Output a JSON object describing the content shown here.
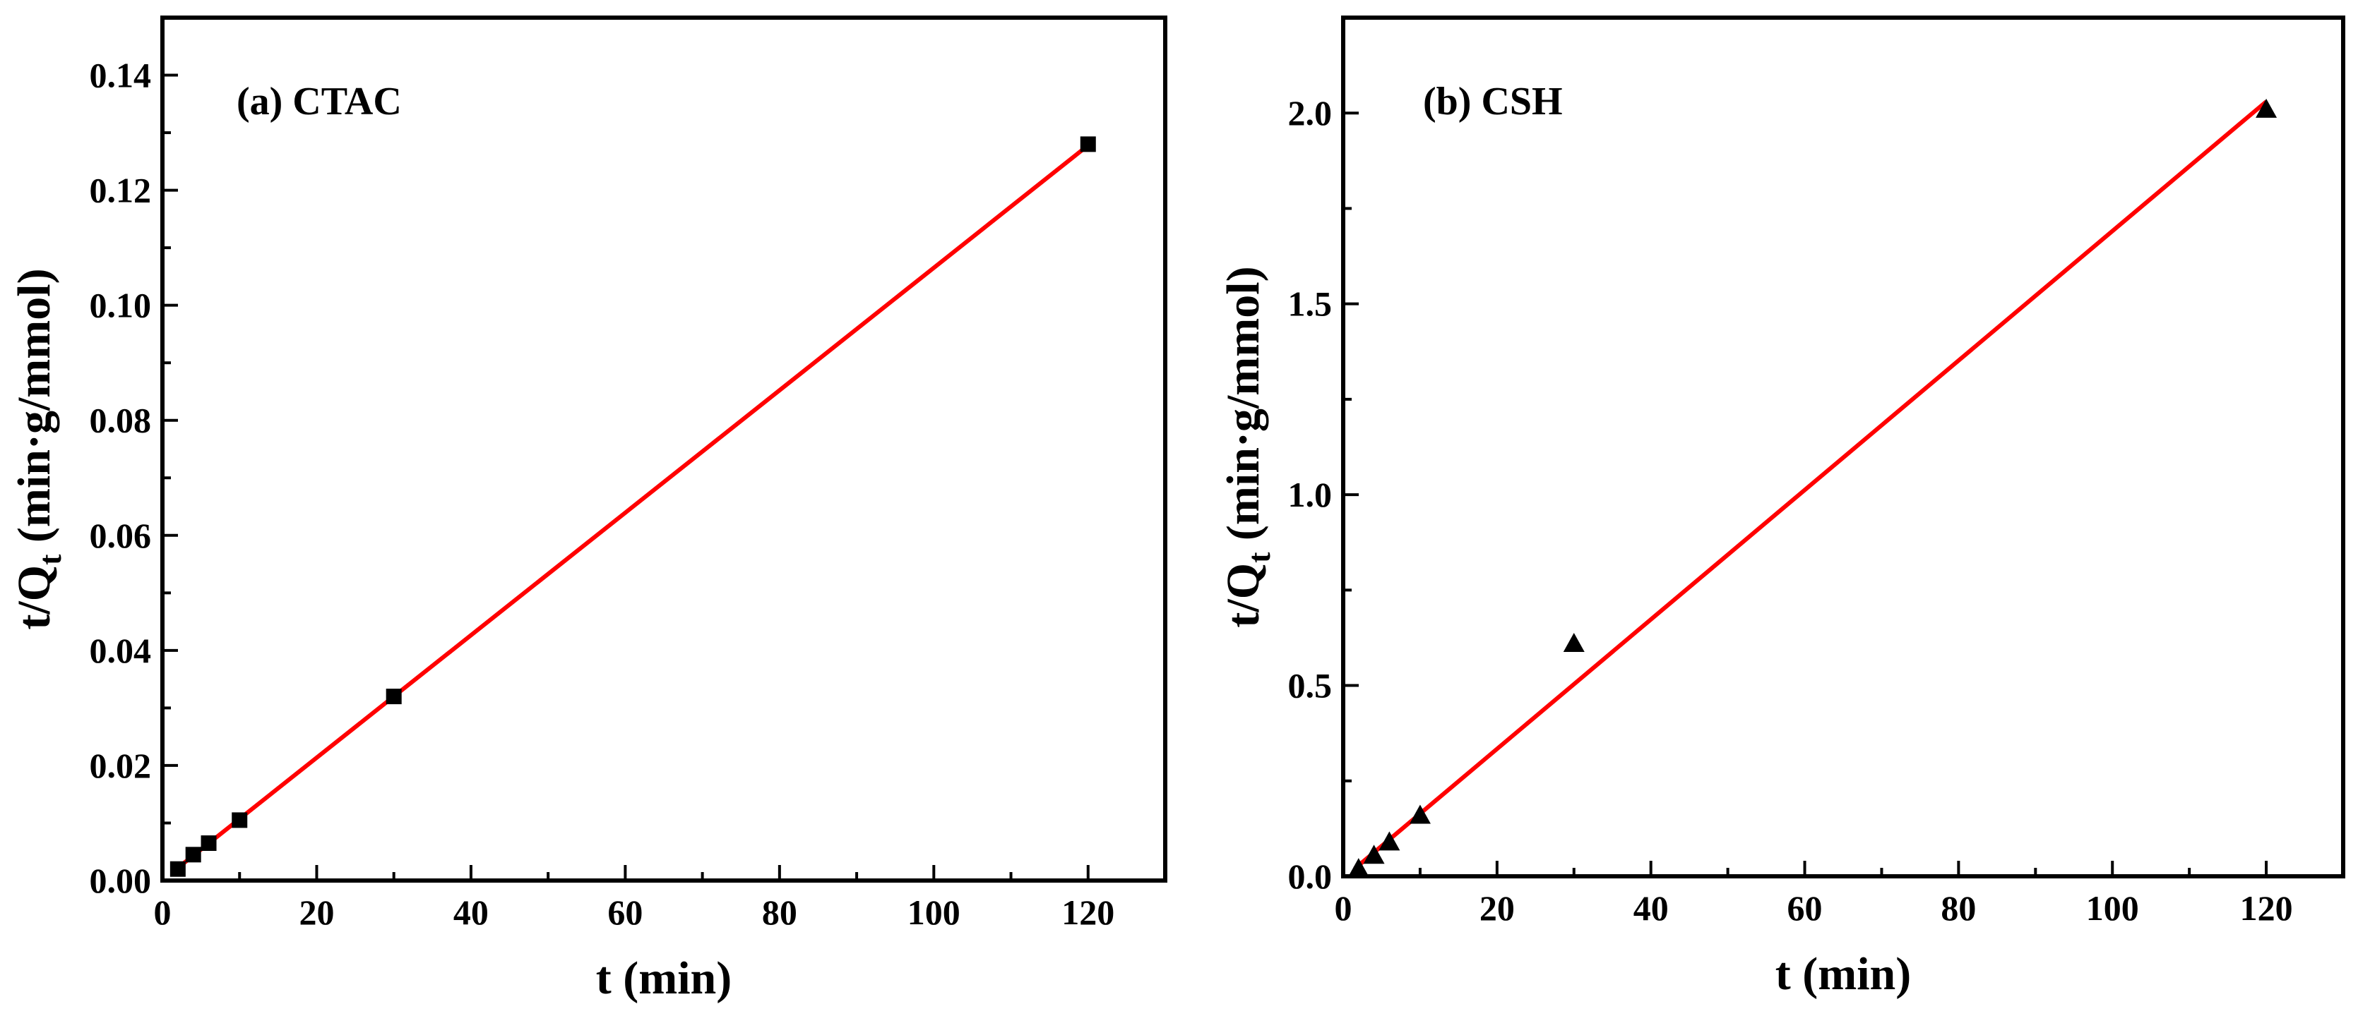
{
  "chart_data": [
    {
      "type": "scatter",
      "title": "(a) CTAC",
      "xlabel": "t (min)",
      "ylabel": {
        "main": "t/Q",
        "sub": "t",
        "unit": " (min·g/mmol)"
      },
      "xlim": [
        0,
        130
      ],
      "ylim": [
        0,
        0.15
      ],
      "xticks": [
        0,
        20,
        40,
        60,
        80,
        100,
        120
      ],
      "xtick_labels": [
        "0",
        "20",
        "40",
        "60",
        "80",
        "100",
        "120"
      ],
      "yticks": [
        0.0,
        0.02,
        0.04,
        0.06,
        0.08,
        0.1,
        0.12,
        0.14
      ],
      "ytick_labels": [
        "0.00",
        "0.02",
        "0.04",
        "0.06",
        "0.08",
        "0.10",
        "0.12",
        "0.14"
      ],
      "marker": "square",
      "series": [
        {
          "name": "data",
          "x": [
            2,
            4,
            6,
            10,
            30,
            120
          ],
          "y": [
            0.002,
            0.0045,
            0.0065,
            0.0105,
            0.032,
            0.128
          ]
        }
      ],
      "fit": {
        "name": "linear fit",
        "x": [
          2,
          120
        ],
        "y": [
          0.0022,
          0.1278
        ],
        "color": "#ff0000"
      }
    },
    {
      "type": "scatter",
      "title": "(b) CSH",
      "xlabel": "t (min)",
      "ylabel": {
        "main": "t/Q",
        "sub": "t",
        "unit": " (min·g/mmol)"
      },
      "xlim": [
        0,
        130
      ],
      "ylim": [
        0,
        2.25
      ],
      "xticks": [
        0,
        20,
        40,
        60,
        80,
        100,
        120
      ],
      "xtick_labels": [
        "0",
        "20",
        "40",
        "60",
        "80",
        "100",
        "120"
      ],
      "yticks": [
        0.0,
        0.5,
        1.0,
        1.5,
        2.0
      ],
      "ytick_labels": [
        "0.0",
        "0.5",
        "1.0",
        "1.5",
        "2.0"
      ],
      "marker": "triangle",
      "series": [
        {
          "name": "data",
          "x": [
            2,
            4,
            6,
            10,
            30,
            120
          ],
          "y": [
            0.02,
            0.055,
            0.09,
            0.16,
            0.61,
            2.01
          ]
        }
      ],
      "fit": {
        "name": "linear fit",
        "x": [
          1.5,
          120
        ],
        "y": [
          0.02,
          2.03
        ],
        "color": "#ff0000"
      }
    }
  ]
}
